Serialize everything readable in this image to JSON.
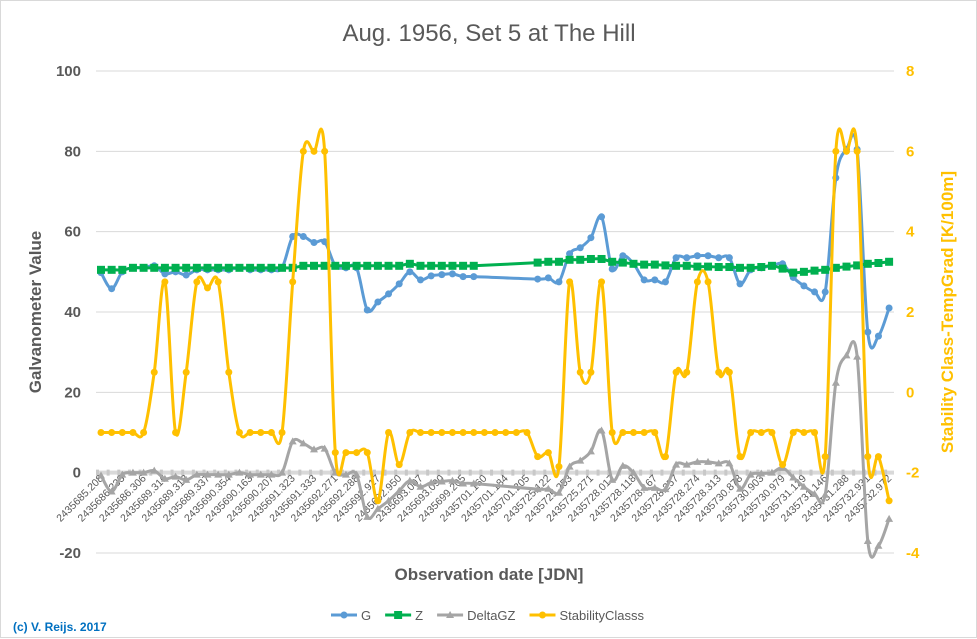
{
  "chart_data": {
    "type": "line",
    "title": "Aug. 1956, Set 5 at The Hill",
    "xlabel": "Observation date [JDN]",
    "ylabel": "Galvanometer Value",
    "ylabel_right": "Stability Class-TempGrad [K/100m]",
    "ylim": [
      -20,
      100
    ],
    "ylim_right": [
      -4,
      8
    ],
    "yticks": [
      "100",
      "80",
      "60",
      "40",
      "20",
      "0",
      "-20"
    ],
    "yticks_right": [
      "8",
      "6",
      "4",
      "2",
      "0",
      "-2",
      "-4"
    ],
    "grid": true,
    "smoothed": true,
    "legend_position": "bottom",
    "x_tick_labels": [
      "2435685.208",
      "2435686.233",
      "2435686.306",
      "2435689.316",
      "2435689.313",
      "2435689.337",
      "2435690.354",
      "2435690.163",
      "2435690.207",
      "2435691.323",
      "2435691.333",
      "2435692.271",
      "2435692.288",
      "2435692.917",
      "2435692.950",
      "2435693.007",
      "2435693.090",
      "2435699.205",
      "2435701.160",
      "2435701.184",
      "2435701.205",
      "2435725.122",
      "2435725.253",
      "2435725.271",
      "2435728.017",
      "2435728.118",
      "2435728.167",
      "2435728.257",
      "2435728.274",
      "2435728.313",
      "2435730.878",
      "2435730.903",
      "2435730.979",
      "2435731.129",
      "2435731.146",
      "2435731.288",
      "2435732.931",
      "2435732.972"
    ],
    "series": [
      {
        "name": "G",
        "axis": "left",
        "color": "#5B9BD5",
        "marker": "circle",
        "values": [
          49.8,
          45.8,
          50,
          51,
          51,
          51.5,
          49.5,
          50,
          49.2,
          50.5,
          50.5,
          50.5,
          50.5,
          51,
          50.5,
          50.5,
          50.5,
          51,
          58.8,
          58.8,
          57.3,
          57.5,
          51.5,
          51,
          51,
          40.5,
          42.5,
          44.5,
          47,
          50,
          48,
          49,
          49.3,
          49.5,
          48.8,
          48.8,
          null,
          null,
          null,
          null,
          null,
          48.2,
          48.5,
          47.5,
          54.5,
          56,
          58.5,
          63.7,
          50.7,
          54,
          52,
          48,
          48,
          47.5,
          53.5,
          53.5,
          54,
          54,
          53.5,
          53.5,
          47,
          50.5,
          51,
          51.5,
          52,
          48.6,
          46.5,
          45,
          45,
          73.4,
          80.5,
          80.5,
          35,
          34,
          41
        ]
      },
      {
        "name": "Z",
        "axis": "left",
        "color": "#00B050",
        "marker": "square",
        "values": [
          50.5,
          50.5,
          50.5,
          51,
          51,
          51,
          51,
          51,
          51,
          51,
          51,
          51,
          51,
          51,
          51,
          51,
          51,
          51,
          51,
          51.5,
          51.5,
          51.5,
          51.5,
          51.5,
          51.5,
          51.5,
          51.5,
          51.5,
          51.5,
          52,
          51.5,
          51.5,
          51.5,
          51.5,
          51.5,
          51.5,
          null,
          null,
          null,
          null,
          null,
          52.3,
          52.5,
          52.5,
          53,
          53,
          53.2,
          53.2,
          52.5,
          52.3,
          52,
          51.8,
          51.8,
          51.6,
          51.5,
          51.5,
          51.3,
          51.3,
          51.2,
          51.2,
          51,
          51,
          51.2,
          51.5,
          50.8,
          49.8,
          50,
          50.3,
          50.5,
          51,
          51.3,
          51.6,
          52,
          52.2,
          52.5
        ]
      },
      {
        "name": "DeltaGZ",
        "axis": "left",
        "color": "#A5A5A5",
        "marker": "triangle",
        "values": [
          -0.7,
          -4.7,
          -0.5,
          0,
          0,
          0.5,
          -1.5,
          -1,
          -1.8,
          -0.5,
          -0.5,
          -0.5,
          -0.5,
          0,
          -0.5,
          -0.5,
          -0.5,
          0,
          7.8,
          7.3,
          5.8,
          6,
          0,
          -0.5,
          -0.5,
          -11,
          -9,
          -7,
          -4.5,
          -2,
          -3.5,
          -2.5,
          -2.2,
          -2,
          -2.7,
          -2.7,
          null,
          null,
          null,
          null,
          null,
          -4.1,
          -4,
          -5,
          1.5,
          3,
          5.3,
          10.5,
          -1.8,
          1.7,
          0,
          -3.8,
          -3.8,
          -4.1,
          2,
          2,
          2.7,
          2.7,
          2.3,
          2.3,
          -4,
          -0.5,
          -0.2,
          0,
          1.2,
          -1.2,
          -3.5,
          -5.3,
          -5.5,
          22.4,
          29.2,
          28.9,
          -17,
          -18.2,
          -11.5
        ]
      },
      {
        "name": "StabilityClasss",
        "axis": "right",
        "color": "#FFC000",
        "marker": "circle",
        "values": [
          -1,
          -1,
          -1,
          -1,
          -1,
          0.5,
          2.75,
          -1,
          0.5,
          2.75,
          2.6,
          2.75,
          0.5,
          -1,
          -1,
          -1,
          -1,
          -1,
          2.75,
          6,
          6,
          6,
          -1.5,
          -1.5,
          -1.5,
          -1.5,
          -2.7,
          -1,
          -1.8,
          -1,
          -1,
          -1,
          -1,
          -1,
          -1,
          -1,
          -1,
          -1,
          -1,
          -1,
          -1,
          -1.6,
          -1.5,
          -1.85,
          2.75,
          0.5,
          0.5,
          2.75,
          -1,
          -1,
          -1,
          -1,
          -1,
          -1.6,
          0.5,
          0.5,
          2.75,
          2.75,
          0.5,
          0.5,
          -1.6,
          -1,
          -1,
          -1,
          -1.8,
          -1,
          -1,
          -1,
          -1.6,
          6,
          6,
          6,
          -1.6,
          -1.6,
          -2.7
        ]
      }
    ]
  },
  "copyright": "(c) V. Reijs. 2017"
}
